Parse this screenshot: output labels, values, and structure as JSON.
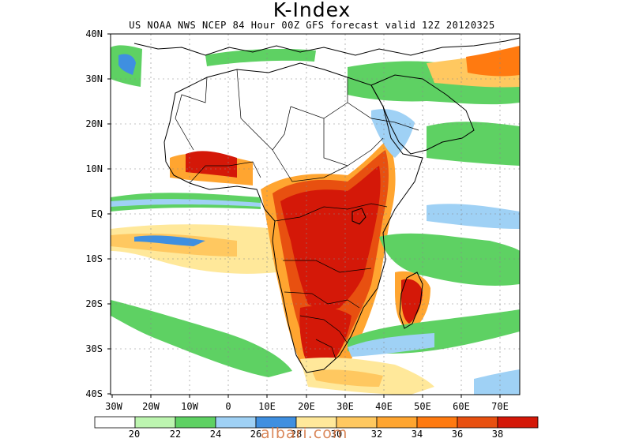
{
  "title": "K-Index",
  "subtitle": "US NOAA NWS NCEP 84 Hour 00Z GFS forecast valid 12Z 20120325",
  "lat_labels": [
    "40N",
    "30N",
    "20N",
    "10N",
    "EQ",
    "10S",
    "20S",
    "30S",
    "40S"
  ],
  "lon_labels": [
    "30W",
    "20W",
    "10W",
    "0",
    "10E",
    "20E",
    "30E",
    "40E",
    "50E",
    "60E",
    "70E"
  ],
  "colorbar": {
    "thresholds": [
      "20",
      "22",
      "24",
      "26",
      "28",
      "30",
      "32",
      "34",
      "36",
      "38"
    ],
    "colors": [
      "#ffffff",
      "#bdf5b0",
      "#5ed163",
      "#9fd1f5",
      "#3f8fe0",
      "#ffe89a",
      "#ffc860",
      "#ffa530",
      "#ff7a10",
      "#e85010",
      "#d41808"
    ]
  },
  "watermark": "albari.com"
}
